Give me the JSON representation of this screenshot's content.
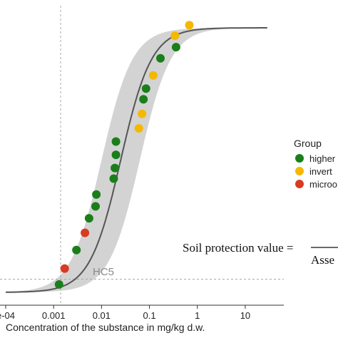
{
  "chart_data": {
    "type": "scatter",
    "x_scale": "log",
    "xlim": [
      0.0001,
      30
    ],
    "ylim": [
      0,
      1
    ],
    "xlabel": "Concentration of the substance in mg/kg d.w.",
    "x_ticks": [
      {
        "value": 0.0001,
        "label": "e-04"
      },
      {
        "value": 0.001,
        "label": "0.001"
      },
      {
        "value": 0.01,
        "label": "0.01"
      },
      {
        "value": 0.1,
        "label": "0.1"
      },
      {
        "value": 1,
        "label": "1"
      },
      {
        "value": 10,
        "label": "10"
      }
    ],
    "fit_curve": {
      "log10_mu": -1.6,
      "sigma": 0.55
    },
    "confidence_band": {
      "width": 0.4
    },
    "hc5": {
      "label": "HC5",
      "x": 0.0014,
      "y": 0.05
    },
    "legend": {
      "title": "Group",
      "entries": [
        {
          "label": "higher",
          "color": "#1a7f1a"
        },
        {
          "label": "invert",
          "color": "#f5b800"
        },
        {
          "label": "microo",
          "color": "#d83a22"
        }
      ]
    },
    "series": [
      {
        "name": "higher",
        "color": "#1a7f1a",
        "points": [
          {
            "x": 0.0013,
            "y": 0.03
          },
          {
            "x": 0.003,
            "y": 0.16
          },
          {
            "x": 0.0055,
            "y": 0.28
          },
          {
            "x": 0.0075,
            "y": 0.325
          },
          {
            "x": 0.0078,
            "y": 0.37
          },
          {
            "x": 0.018,
            "y": 0.43
          },
          {
            "x": 0.019,
            "y": 0.47
          },
          {
            "x": 0.02,
            "y": 0.52
          },
          {
            "x": 0.02,
            "y": 0.57
          },
          {
            "x": 0.075,
            "y": 0.73
          },
          {
            "x": 0.085,
            "y": 0.77
          },
          {
            "x": 0.17,
            "y": 0.885
          },
          {
            "x": 0.36,
            "y": 0.927
          }
        ]
      },
      {
        "name": "invert",
        "color": "#f5b800",
        "points": [
          {
            "x": 0.06,
            "y": 0.62
          },
          {
            "x": 0.07,
            "y": 0.675
          },
          {
            "x": 0.12,
            "y": 0.82
          },
          {
            "x": 0.34,
            "y": 0.97
          },
          {
            "x": 0.68,
            "y": 1.01
          }
        ]
      },
      {
        "name": "microo",
        "color": "#d83a22",
        "points": [
          {
            "x": 0.0017,
            "y": 0.09
          },
          {
            "x": 0.0045,
            "y": 0.225
          }
        ]
      }
    ]
  },
  "formula": {
    "left": "Soil protection value =",
    "denominator": "Asse"
  }
}
